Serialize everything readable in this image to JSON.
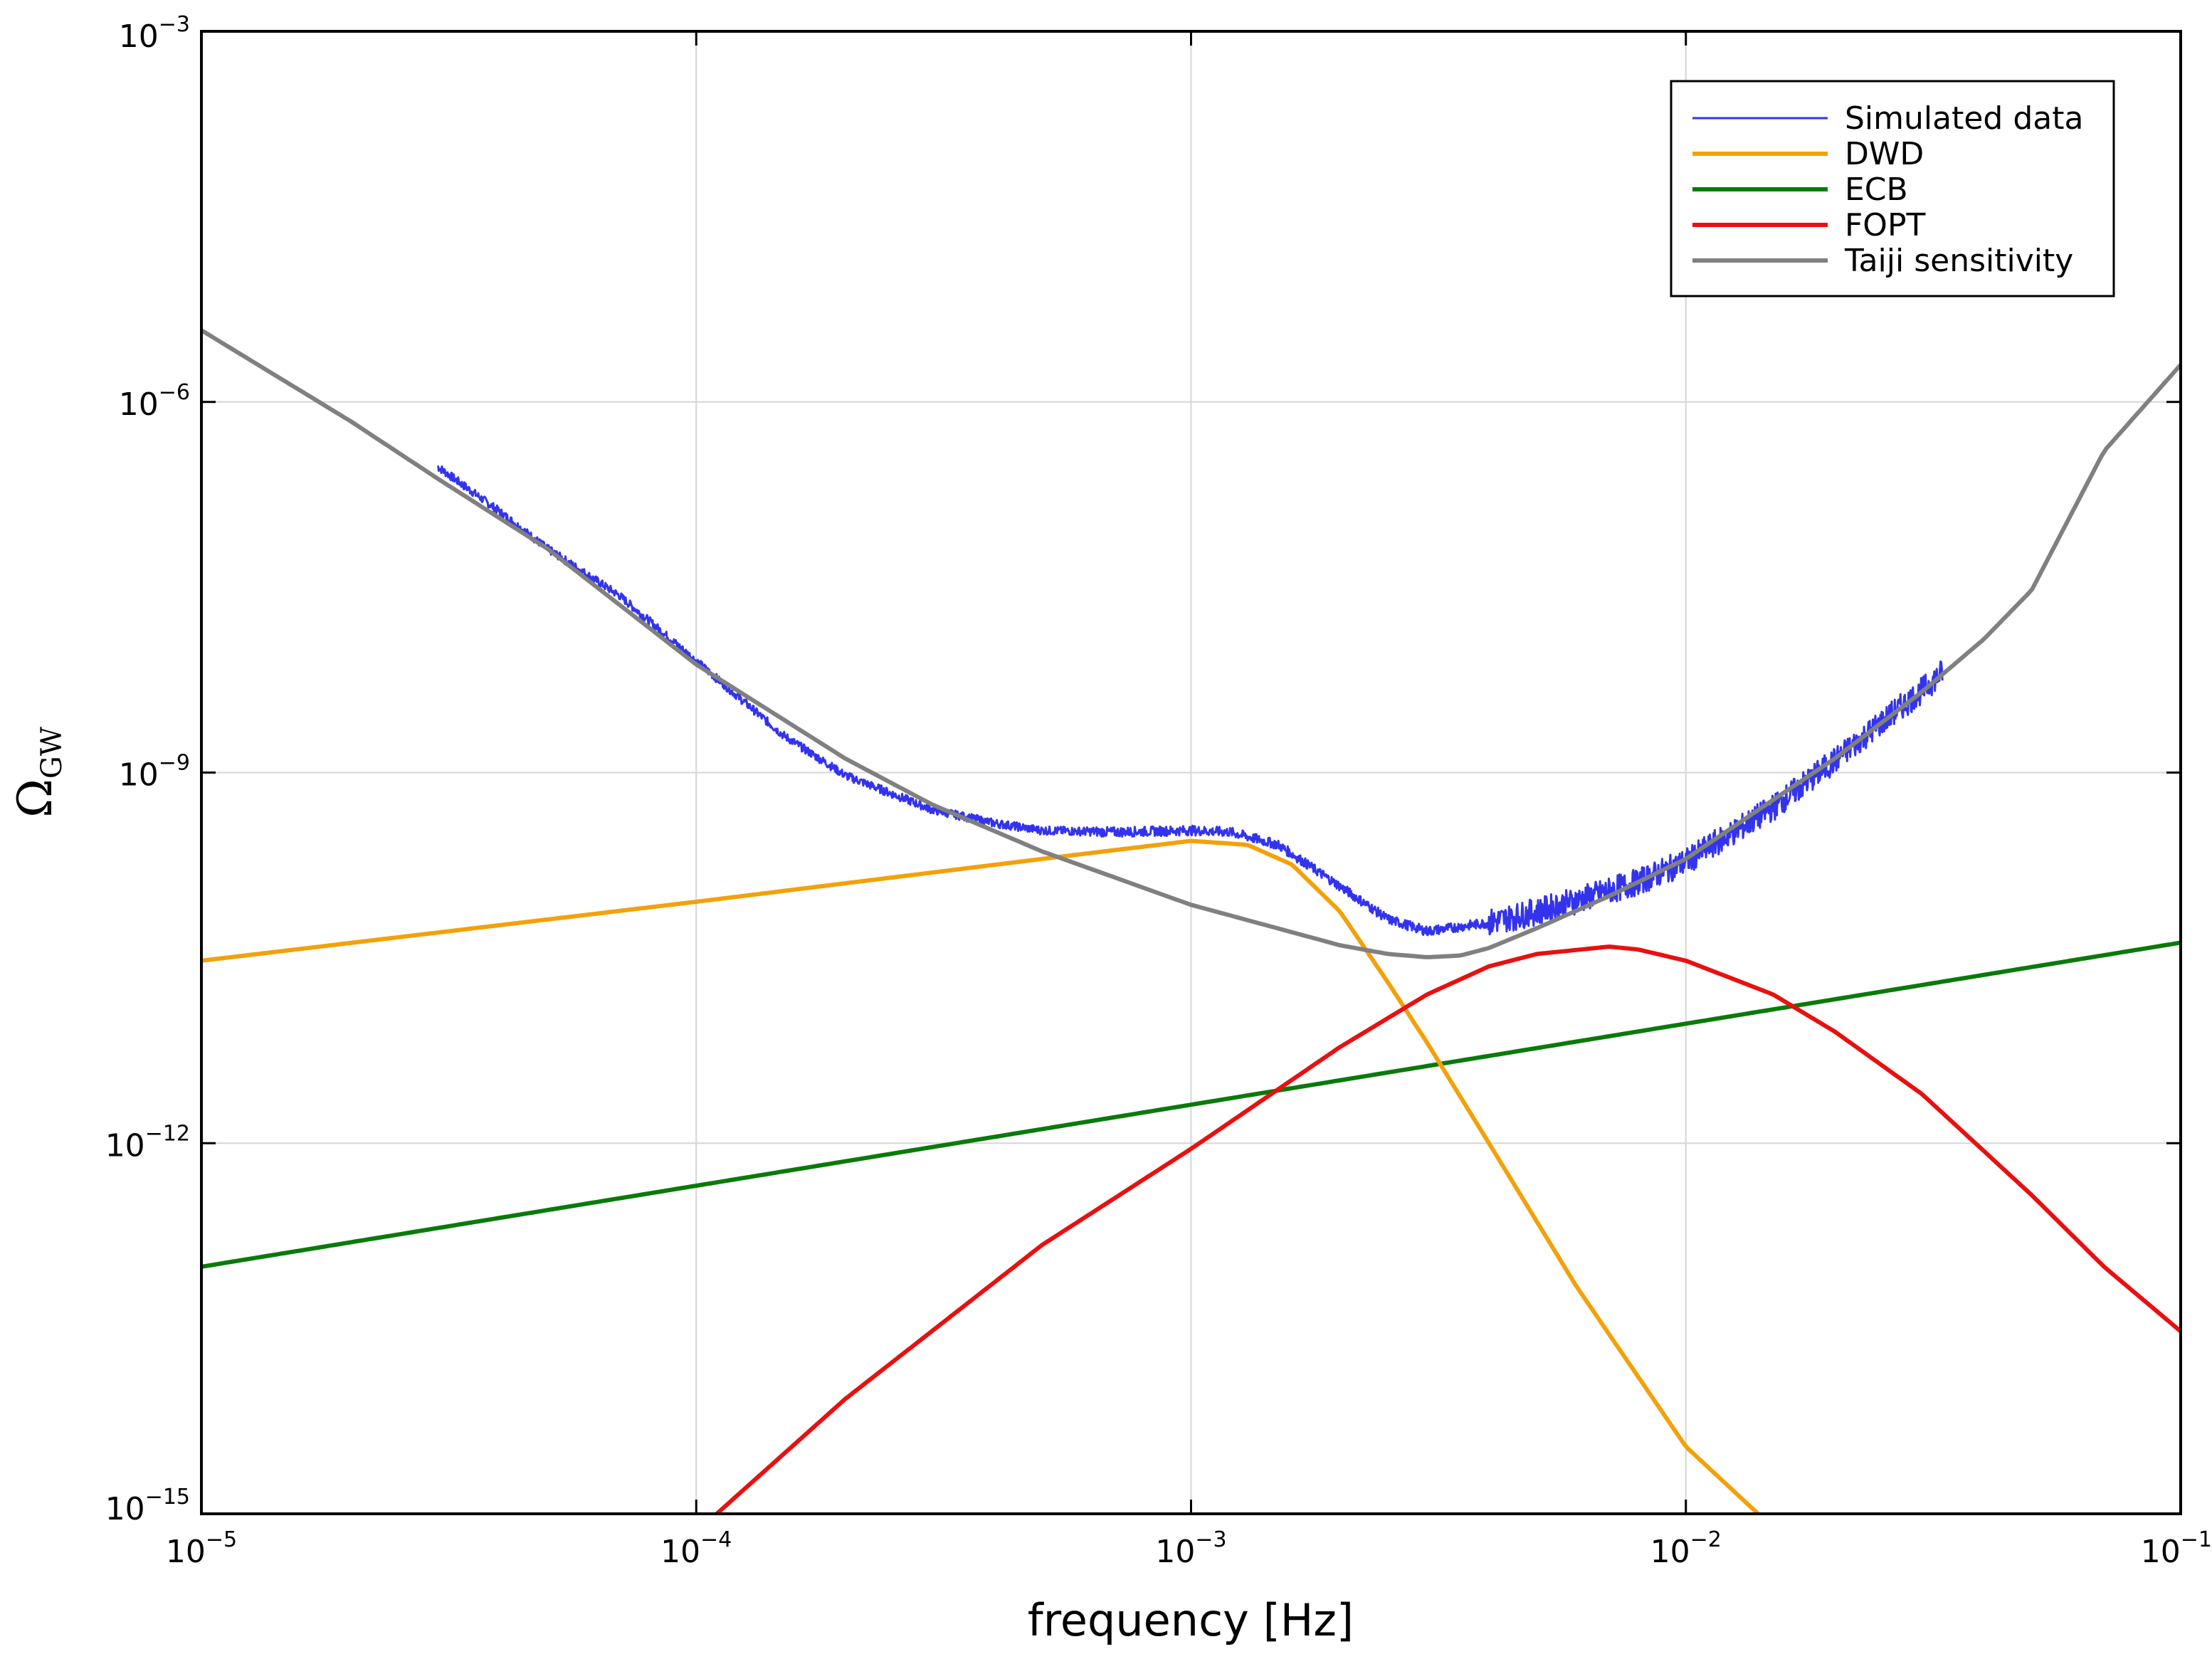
{
  "chart_data": {
    "type": "line",
    "xlabel": "frequency [Hz]",
    "ylabel_main": "Ω",
    "ylabel_sub": "GW",
    "xscale": "log",
    "yscale": "log",
    "xlim": [
      1e-05,
      0.1
    ],
    "ylim": [
      1e-15,
      0.001
    ],
    "grid": true,
    "legend_position": "top-right",
    "x_ticks": [
      {
        "value": 1e-05,
        "base": "10",
        "exp": "−5"
      },
      {
        "value": 0.0001,
        "base": "10",
        "exp": "−4"
      },
      {
        "value": 0.001,
        "base": "10",
        "exp": "−3"
      },
      {
        "value": 0.01,
        "base": "10",
        "exp": "−2"
      },
      {
        "value": 0.1,
        "base": "10",
        "exp": "−1"
      }
    ],
    "y_ticks": [
      {
        "value": 1e-15,
        "base": "10",
        "exp": "−15"
      },
      {
        "value": 1e-12,
        "base": "10",
        "exp": "−12"
      },
      {
        "value": 1e-09,
        "base": "10",
        "exp": "−9"
      },
      {
        "value": 1e-06,
        "base": "10",
        "exp": "−6"
      },
      {
        "value": 0.001,
        "base": "10",
        "exp": "−3"
      }
    ],
    "series": [
      {
        "name": "Simulated data",
        "color": "#3333ee",
        "style": "noisy",
        "x": [
          3e-05,
          4e-05,
          5e-05,
          7e-05,
          0.0001,
          0.00015,
          0.0002,
          0.0003,
          0.0004,
          0.0005,
          0.0007,
          0.001,
          0.0012,
          0.0015,
          0.002,
          0.0025,
          0.003,
          0.004,
          0.005,
          0.006,
          0.008,
          0.01,
          0.015,
          0.02,
          0.025,
          0.03,
          0.033
        ],
        "y": [
          3e-07,
          1.3e-07,
          6.5e-08,
          2.7e-08,
          8e-09,
          2e-09,
          9.5e-10,
          5e-10,
          3.9e-10,
          3.4e-10,
          3.3e-10,
          3.4e-10,
          3.3e-10,
          2.6e-10,
          1.2e-10,
          6.5e-11,
          5.2e-11,
          6.1e-11,
          7.5e-11,
          9.2e-11,
          1.3e-10,
          1.9e-10,
          5.2e-10,
          1.25e-09,
          2.6e-09,
          4.6e-09,
          6.5e-09
        ]
      },
      {
        "name": "DWD",
        "color": "#f3a10b",
        "x": [
          1e-05,
          0.0001,
          0.0005,
          0.001,
          0.0013,
          0.0016,
          0.002,
          0.0025,
          0.003,
          0.004,
          0.006,
          0.01,
          0.014
        ],
        "y": [
          3e-11,
          9e-11,
          2e-10,
          2.8e-10,
          2.6e-10,
          1.8e-10,
          7.5e-11,
          2e-11,
          6.5e-12,
          1e-12,
          7e-14,
          3.5e-15,
          1e-15
        ]
      },
      {
        "name": "ECB",
        "color": "#0a7a0a",
        "x": [
          1e-05,
          0.1
        ],
        "y": [
          1e-13,
          4.2e-11
        ]
      },
      {
        "name": "FOPT",
        "color": "#e81010",
        "x": [
          0.00011,
          0.0002,
          0.0005,
          0.001,
          0.002,
          0.003,
          0.004,
          0.005,
          0.007,
          0.008,
          0.01,
          0.015,
          0.02,
          0.03,
          0.05,
          0.07,
          0.1
        ],
        "y": [
          1e-15,
          8.5e-15,
          1.5e-13,
          9e-13,
          6e-12,
          1.6e-11,
          2.7e-11,
          3.4e-11,
          3.9e-11,
          3.7e-11,
          3e-11,
          1.6e-11,
          8e-12,
          2.5e-12,
          3.8e-13,
          1e-13,
          3e-14
        ]
      },
      {
        "name": "Taiji sensitivity",
        "color": "#808080",
        "x": [
          1e-05,
          2e-05,
          3e-05,
          5e-05,
          0.0001,
          0.0002,
          0.0003,
          0.0005,
          0.001,
          0.002,
          0.0025,
          0.003,
          0.0035,
          0.004,
          0.005,
          0.007,
          0.01,
          0.015,
          0.02,
          0.03,
          0.04,
          0.05,
          0.07,
          0.1
        ],
        "y": [
          3.8e-06,
          7e-07,
          2.4e-07,
          6.5e-08,
          7.5e-09,
          1.3e-09,
          5.5e-10,
          2.3e-10,
          8.5e-11,
          4e-11,
          3.4e-11,
          3.2e-11,
          3.3e-11,
          3.8e-11,
          5.5e-11,
          1e-10,
          2e-10,
          6e-10,
          1.3e-09,
          4.5e-09,
          1.2e-08,
          3e-08,
          4e-07,
          2e-06
        ]
      }
    ]
  }
}
